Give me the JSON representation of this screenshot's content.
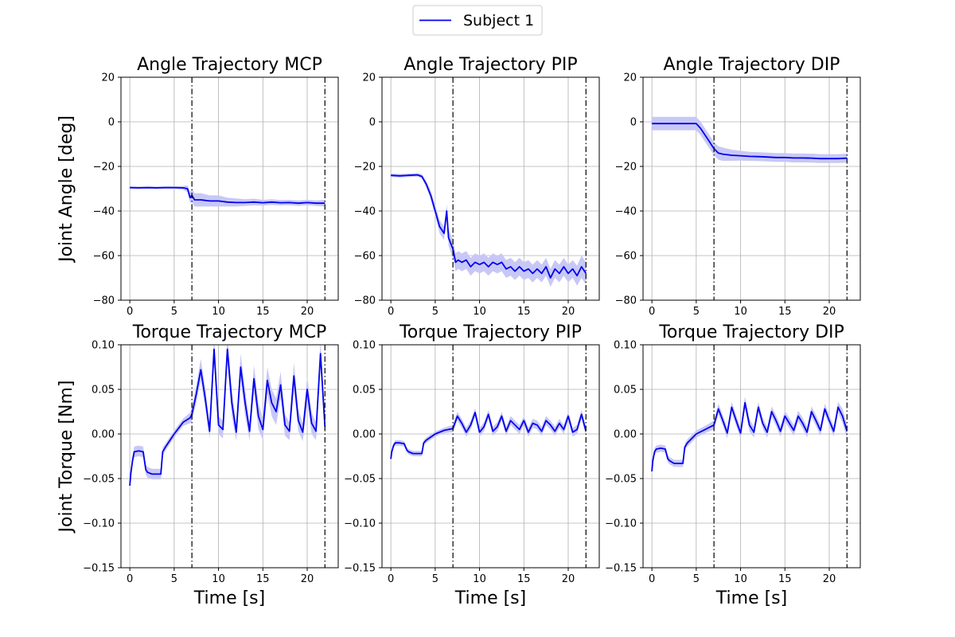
{
  "legend": {
    "label": "Subject 1",
    "placement": "top-center"
  },
  "colors": {
    "series": "#0000ee",
    "band": "#c8c8f6",
    "grid": "#b0b0b0",
    "marker_line": "#000000"
  },
  "chart_data": [
    {
      "type": "line",
      "title": "Angle Trajectory MCP",
      "ylabel": "Joint Angle [deg]",
      "xlabel": "",
      "xlim": [
        -1,
        23.5
      ],
      "ylim": [
        -80,
        20
      ],
      "xticks": [
        0,
        5,
        10,
        15,
        20
      ],
      "yticks": [
        -80,
        -60,
        -40,
        -20,
        0,
        20
      ],
      "ytick_labels": [
        "−80",
        "−60",
        "−40",
        "−20",
        "0",
        "20"
      ],
      "vlines": [
        7,
        22
      ],
      "grid": true,
      "series": [
        {
          "name": "Subject 1",
          "x": [
            0,
            1,
            2,
            3,
            4,
            5,
            6,
            6.5,
            6.8,
            7,
            7.3,
            8,
            9,
            10,
            11,
            12,
            13,
            14,
            15,
            16,
            17,
            18,
            19,
            20,
            21,
            22
          ],
          "y": [
            -29.5,
            -29.6,
            -29.5,
            -29.6,
            -29.5,
            -29.5,
            -29.6,
            -30,
            -34,
            -33,
            -35,
            -35,
            -35.5,
            -35.5,
            -36,
            -36.2,
            -36.2,
            -36,
            -36.3,
            -36,
            -36.3,
            -36.2,
            -36.5,
            -36.2,
            -36.5,
            -36.5
          ],
          "band_halfwidth": [
            0.6,
            0.6,
            0.6,
            0.6,
            0.6,
            0.6,
            0.8,
            1.5,
            2.5,
            3,
            3,
            3,
            2.5,
            2.5,
            2,
            1.8,
            1.5,
            1.5,
            1.3,
            1.3,
            1.2,
            1.2,
            1.2,
            1.2,
            1.2,
            1.5
          ]
        }
      ]
    },
    {
      "type": "line",
      "title": "Angle Trajectory PIP",
      "ylabel": "",
      "xlabel": "",
      "xlim": [
        -1,
        23.5
      ],
      "ylim": [
        -80,
        20
      ],
      "xticks": [
        0,
        5,
        10,
        15,
        20
      ],
      "yticks": [
        -80,
        -60,
        -40,
        -20,
        0,
        20
      ],
      "ytick_labels": [
        "−80",
        "−60",
        "−40",
        "−20",
        "0",
        "20"
      ],
      "vlines": [
        7,
        22
      ],
      "grid": true,
      "series": [
        {
          "name": "Subject 1",
          "x": [
            0,
            1,
            2,
            3,
            3.5,
            4,
            4.5,
            5,
            5.5,
            6,
            6.3,
            6.5,
            6.8,
            7,
            7.3,
            7.6,
            8,
            8.5,
            9,
            9.5,
            10,
            10.5,
            11,
            11.5,
            12,
            12.5,
            13,
            13.5,
            14,
            14.5,
            15,
            15.5,
            16,
            16.5,
            17,
            17.5,
            18,
            18.5,
            19,
            19.5,
            20,
            20.5,
            21,
            21.5,
            22
          ],
          "y": [
            -24,
            -24.2,
            -24,
            -23.8,
            -24.5,
            -28,
            -33,
            -40,
            -47,
            -50,
            -40,
            -52,
            -55,
            -57,
            -63,
            -62,
            -63,
            -62,
            -65,
            -63,
            -64,
            -63,
            -65,
            -63,
            -64,
            -63,
            -66,
            -65,
            -67,
            -65,
            -67,
            -66,
            -68,
            -66,
            -68,
            -65,
            -70,
            -66,
            -68,
            -65,
            -68,
            -66,
            -69,
            -65,
            -68
          ],
          "band_halfwidth": [
            0.8,
            0.8,
            0.8,
            0.8,
            1,
            1.5,
            2,
            2.5,
            3,
            3,
            3,
            3.5,
            4,
            4,
            4,
            4,
            4,
            4,
            4,
            4,
            4,
            4,
            4,
            4,
            4,
            4,
            4,
            4,
            4,
            4,
            4,
            4,
            4,
            4,
            4,
            4,
            4,
            4,
            4,
            4,
            4,
            4,
            4.5,
            5,
            5
          ]
        }
      ]
    },
    {
      "type": "line",
      "title": "Angle Trajectory DIP",
      "ylabel": "",
      "xlabel": "",
      "xlim": [
        -1,
        23.5
      ],
      "ylim": [
        -80,
        20
      ],
      "xticks": [
        0,
        5,
        10,
        15,
        20
      ],
      "yticks": [
        -80,
        -60,
        -40,
        -20,
        0,
        20
      ],
      "ytick_labels": [
        "−80",
        "−60",
        "−40",
        "−20",
        "0",
        "20"
      ],
      "vlines": [
        7,
        22
      ],
      "grid": true,
      "series": [
        {
          "name": "Subject 1",
          "x": [
            0,
            1,
            2,
            3,
            4,
            5,
            5.5,
            6,
            6.5,
            7,
            7.5,
            8,
            9,
            10,
            11,
            12,
            13,
            14,
            15,
            16,
            17,
            18,
            19,
            20,
            21,
            22
          ],
          "y": [
            -0.8,
            -0.8,
            -0.8,
            -0.8,
            -0.8,
            -0.8,
            -3,
            -6,
            -9,
            -12,
            -14,
            -14.5,
            -15,
            -15.2,
            -15.5,
            -15.6,
            -15.8,
            -16,
            -16,
            -16.2,
            -16.2,
            -16.3,
            -16.5,
            -16.5,
            -16.5,
            -16.3
          ],
          "band_halfwidth": [
            3,
            3,
            3,
            3,
            3,
            3,
            3,
            3,
            3,
            3,
            3,
            3,
            2.5,
            2.2,
            2,
            2,
            2,
            2,
            2,
            2,
            2,
            2,
            2,
            2,
            2,
            2
          ]
        }
      ]
    },
    {
      "type": "line",
      "title": "Torque Trajectory MCP",
      "ylabel": "Joint Torque [Nm]",
      "xlabel": "Time [s]",
      "xlim": [
        -1,
        23.5
      ],
      "ylim": [
        -0.15,
        0.1
      ],
      "xticks": [
        0,
        5,
        10,
        15,
        20
      ],
      "yticks": [
        -0.15,
        -0.1,
        -0.05,
        0,
        0.05,
        0.1
      ],
      "ytick_labels": [
        "−0.15",
        "−0.10",
        "−0.05",
        "0.00",
        "0.05",
        "0.10"
      ],
      "vlines": [
        7,
        22
      ],
      "grid": true,
      "series": [
        {
          "name": "Subject 1",
          "x": [
            0,
            0.1,
            0.3,
            0.5,
            1.0,
            1.5,
            1.8,
            2.0,
            2.5,
            3.0,
            3.5,
            3.7,
            4.0,
            5.0,
            6.0,
            6.8,
            7.0,
            7.5,
            8.0,
            8.5,
            9.0,
            9.5,
            10.0,
            10.5,
            11.0,
            11.5,
            12.0,
            12.5,
            13.0,
            13.5,
            14.0,
            14.5,
            15.0,
            15.5,
            16.0,
            16.5,
            17.0,
            17.5,
            18.0,
            18.5,
            19.0,
            19.5,
            20.0,
            20.5,
            21.0,
            21.5,
            22.0
          ],
          "y": [
            -0.058,
            -0.045,
            -0.03,
            -0.02,
            -0.019,
            -0.02,
            -0.04,
            -0.043,
            -0.045,
            -0.045,
            -0.045,
            -0.02,
            -0.015,
            0.0,
            0.013,
            0.018,
            0.022,
            0.045,
            0.072,
            0.04,
            0.003,
            0.095,
            0.01,
            0.005,
            0.095,
            0.035,
            0.002,
            0.075,
            0.035,
            0.003,
            0.062,
            0.02,
            0.005,
            0.06,
            0.035,
            0.025,
            0.055,
            0.01,
            0.003,
            0.065,
            0.015,
            0.002,
            0.05,
            0.012,
            0.003,
            0.09,
            0.008
          ],
          "band_halfwidth": [
            0.005,
            0.005,
            0.006,
            0.006,
            0.006,
            0.006,
            0.006,
            0.006,
            0.006,
            0.006,
            0.006,
            0.005,
            0.004,
            0.004,
            0.004,
            0.006,
            0.008,
            0.01,
            0.012,
            0.012,
            0.008,
            0.015,
            0.01,
            0.01,
            0.015,
            0.015,
            0.01,
            0.015,
            0.015,
            0.01,
            0.015,
            0.015,
            0.012,
            0.015,
            0.015,
            0.015,
            0.015,
            0.012,
            0.01,
            0.015,
            0.012,
            0.01,
            0.015,
            0.012,
            0.01,
            0.015,
            0.012
          ]
        }
      ]
    },
    {
      "type": "line",
      "title": "Torque Trajectory PIP",
      "ylabel": "",
      "xlabel": "Time [s]",
      "xlim": [
        -1,
        23.5
      ],
      "ylim": [
        -0.15,
        0.1
      ],
      "xticks": [
        0,
        5,
        10,
        15,
        20
      ],
      "yticks": [
        -0.15,
        -0.1,
        -0.05,
        0,
        0.05,
        0.1
      ],
      "ytick_labels": [
        "−0.15",
        "−0.10",
        "−0.05",
        "0.00",
        "0.05",
        "0.10"
      ],
      "vlines": [
        7,
        22
      ],
      "grid": true,
      "series": [
        {
          "name": "Subject 1",
          "x": [
            0,
            0.1,
            0.3,
            0.5,
            1.0,
            1.5,
            1.8,
            2.0,
            2.5,
            3.0,
            3.5,
            3.7,
            4.0,
            5.0,
            6.0,
            7.0,
            7.5,
            8.0,
            8.5,
            9.0,
            9.5,
            10.0,
            10.5,
            11.0,
            11.5,
            12.0,
            12.5,
            13.0,
            13.5,
            14.0,
            14.5,
            15.0,
            15.5,
            16.0,
            16.5,
            17.0,
            17.5,
            18.0,
            18.5,
            19.0,
            19.5,
            20.0,
            20.5,
            21.0,
            21.5,
            22.0
          ],
          "y": [
            -0.028,
            -0.02,
            -0.013,
            -0.01,
            -0.01,
            -0.011,
            -0.018,
            -0.02,
            -0.022,
            -0.022,
            -0.022,
            -0.01,
            -0.007,
            0.0,
            0.004,
            0.006,
            0.02,
            0.012,
            0.002,
            0.01,
            0.024,
            0.002,
            0.008,
            0.022,
            0.003,
            0.008,
            0.02,
            0.003,
            0.015,
            0.01,
            0.005,
            0.015,
            0.002,
            0.012,
            0.01,
            0.003,
            0.015,
            0.01,
            0.003,
            0.012,
            0.005,
            0.02,
            0.002,
            0.005,
            0.022,
            0.003
          ],
          "band_halfwidth": [
            0.003,
            0.003,
            0.003,
            0.003,
            0.003,
            0.003,
            0.003,
            0.003,
            0.003,
            0.003,
            0.003,
            0.003,
            0.003,
            0.003,
            0.003,
            0.004,
            0.005,
            0.005,
            0.005,
            0.005,
            0.005,
            0.005,
            0.005,
            0.005,
            0.005,
            0.005,
            0.005,
            0.005,
            0.005,
            0.005,
            0.005,
            0.005,
            0.005,
            0.005,
            0.005,
            0.005,
            0.005,
            0.005,
            0.005,
            0.005,
            0.005,
            0.005,
            0.005,
            0.005,
            0.005,
            0.005
          ]
        }
      ]
    },
    {
      "type": "line",
      "title": "Torque Trajectory DIP",
      "ylabel": "",
      "xlabel": "Time [s]",
      "xlim": [
        -1,
        23.5
      ],
      "ylim": [
        -0.15,
        0.1
      ],
      "xticks": [
        0,
        5,
        10,
        15,
        20
      ],
      "yticks": [
        -0.15,
        -0.1,
        -0.05,
        0,
        0.05,
        0.1
      ],
      "ytick_labels": [
        "−0.15",
        "−0.10",
        "−0.05",
        "0.00",
        "0.05",
        "0.10"
      ],
      "vlines": [
        7,
        22
      ],
      "grid": true,
      "series": [
        {
          "name": "Subject 1",
          "x": [
            0,
            0.1,
            0.3,
            0.5,
            1.0,
            1.5,
            1.8,
            2.0,
            2.5,
            3.0,
            3.5,
            3.7,
            4.0,
            5.0,
            6.0,
            7.0,
            7.5,
            8.0,
            8.5,
            9.0,
            9.5,
            10.0,
            10.5,
            11.0,
            11.5,
            12.0,
            12.5,
            13.0,
            13.5,
            14.0,
            14.5,
            15.0,
            15.5,
            16.0,
            16.5,
            17.0,
            17.5,
            18.0,
            18.5,
            19.0,
            19.5,
            20.0,
            20.5,
            21.0,
            21.5,
            22.0
          ],
          "y": [
            -0.042,
            -0.03,
            -0.02,
            -0.017,
            -0.016,
            -0.017,
            -0.028,
            -0.03,
            -0.033,
            -0.033,
            -0.033,
            -0.015,
            -0.01,
            0.0,
            0.005,
            0.01,
            0.028,
            0.015,
            0.001,
            0.03,
            0.015,
            0.001,
            0.035,
            0.01,
            0.002,
            0.03,
            0.012,
            0.002,
            0.025,
            0.015,
            0.003,
            0.02,
            0.012,
            0.004,
            0.02,
            0.012,
            0.002,
            0.025,
            0.015,
            0.004,
            0.028,
            0.015,
            0.003,
            0.03,
            0.02,
            0.003
          ],
          "band_halfwidth": [
            0.004,
            0.004,
            0.004,
            0.004,
            0.004,
            0.004,
            0.004,
            0.004,
            0.004,
            0.004,
            0.004,
            0.004,
            0.004,
            0.004,
            0.004,
            0.005,
            0.006,
            0.006,
            0.006,
            0.006,
            0.006,
            0.006,
            0.007,
            0.007,
            0.006,
            0.006,
            0.006,
            0.006,
            0.006,
            0.006,
            0.006,
            0.006,
            0.006,
            0.006,
            0.006,
            0.006,
            0.006,
            0.006,
            0.006,
            0.006,
            0.006,
            0.006,
            0.006,
            0.006,
            0.008,
            0.008
          ]
        }
      ]
    }
  ]
}
